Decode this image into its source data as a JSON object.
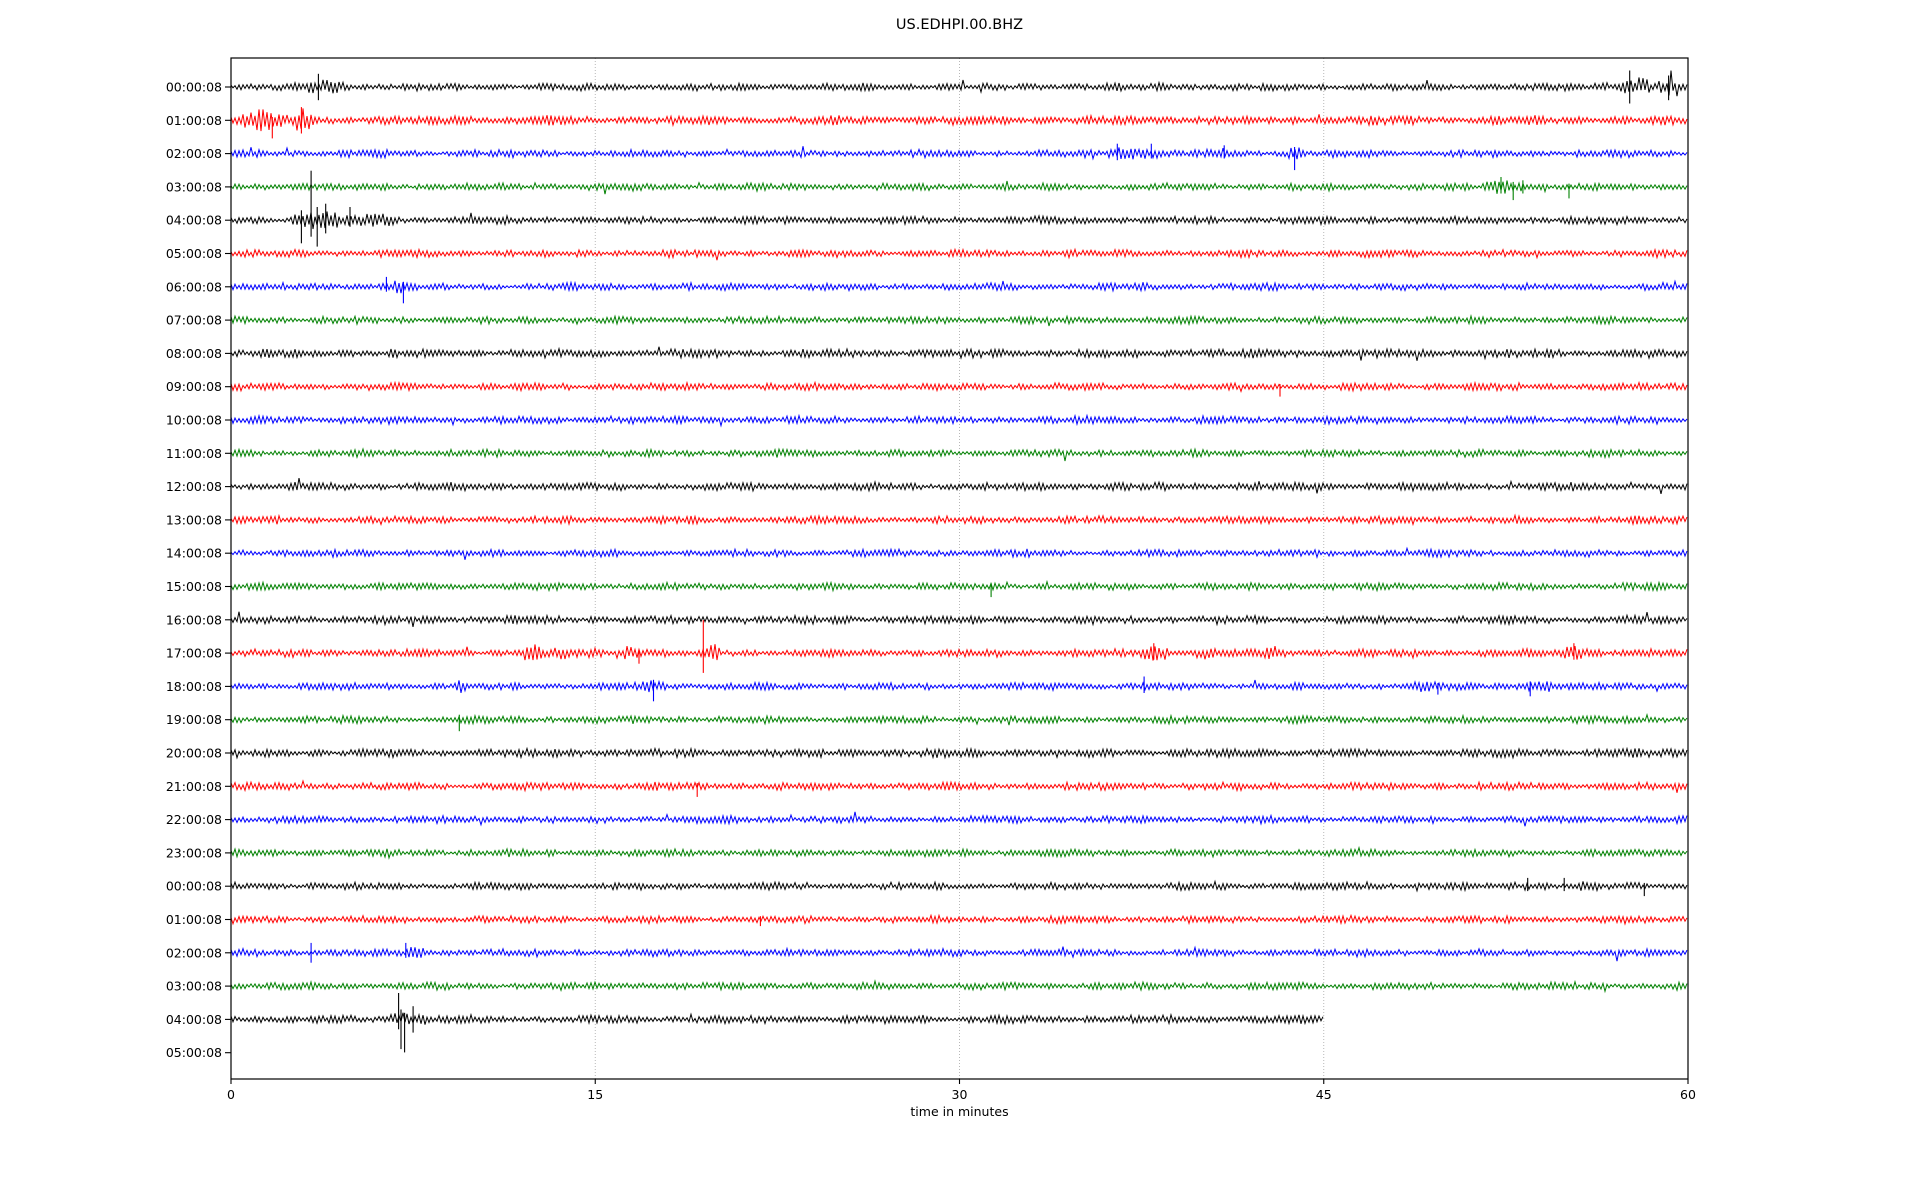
{
  "chart_data": {
    "type": "line",
    "subtype": "helicorder-dayplot",
    "title": "US.EDHPI.00.BHZ",
    "xlabel": "time in minutes",
    "ylabel": "",
    "xlim": [
      0,
      60
    ],
    "x_ticks": [
      0,
      15,
      30,
      45,
      60
    ],
    "grid_x": [
      15,
      30,
      45
    ],
    "grid_on": true,
    "grid_color": "#b0b0b0",
    "color_cycle": [
      "#000000",
      "#ff0000",
      "#0000ff",
      "#008000"
    ],
    "rows": [
      {
        "label": "00:00:08",
        "color": "#000000",
        "end_min": 60,
        "noise": 1.0,
        "bursts": [
          [
            2.6,
            2.4,
            2.0
          ],
          [
            38.0,
            0.5,
            2.2
          ],
          [
            56.1,
            0.6,
            2.2
          ],
          [
            57.1,
            1.4,
            3.4
          ],
          [
            58.7,
            1.3,
            2.6
          ]
        ],
        "spikes": [
          [
            3.6,
            4,
            4
          ],
          [
            57.6,
            5,
            5
          ],
          [
            59.2,
            3.5,
            4
          ]
        ]
      },
      {
        "label": "01:00:08",
        "color": "#ff0000",
        "end_min": 60,
        "noise": 1.2,
        "bursts": [
          [
            0.0,
            2.4,
            2.2
          ],
          [
            2.6,
            0.9,
            3.2
          ],
          [
            8.5,
            1.5,
            1.3
          ]
        ],
        "spikes": [
          [
            1.7,
            1,
            5.5
          ],
          [
            2.9,
            4,
            4
          ]
        ]
      },
      {
        "label": "02:00:08",
        "color": "#0000ff",
        "end_min": 60,
        "noise": 1.0,
        "bursts": [
          [
            36.0,
            2.4,
            2.3
          ],
          [
            40.5,
            0.7,
            1.9
          ],
          [
            43.5,
            0.8,
            2.1
          ]
        ],
        "spikes": [
          [
            36.5,
            3,
            2
          ],
          [
            37.9,
            3,
            1.5
          ],
          [
            40.9,
            2.5,
            1.5
          ],
          [
            43.8,
            2,
            5
          ]
        ]
      },
      {
        "label": "03:00:08",
        "color": "#008000",
        "end_min": 60,
        "noise": 1.0,
        "bursts": [
          [
            51.5,
            1.9,
            2.6
          ]
        ],
        "spikes": [
          [
            52.3,
            3,
            2
          ],
          [
            52.8,
            1.5,
            4
          ],
          [
            53.2,
            2,
            2
          ],
          [
            55.1,
            1,
            3.5
          ]
        ]
      },
      {
        "label": "04:00:08",
        "color": "#000000",
        "end_min": 60,
        "noise": 1.05,
        "bursts": [
          [
            2.5,
            2.0,
            3.0
          ],
          [
            4.5,
            2.8,
            1.7
          ]
        ],
        "spikes": [
          [
            2.9,
            3,
            7
          ],
          [
            3.3,
            15,
            5
          ],
          [
            3.55,
            4,
            8
          ],
          [
            3.9,
            5,
            4
          ],
          [
            4.9,
            4,
            2
          ]
        ]
      },
      {
        "label": "05:00:08",
        "color": "#ff0000",
        "end_min": 60,
        "noise": 1.0,
        "bursts": [],
        "spikes": []
      },
      {
        "label": "06:00:08",
        "color": "#0000ff",
        "end_min": 60,
        "noise": 1.0,
        "bursts": [
          [
            6.0,
            1.5,
            2.2
          ]
        ],
        "spikes": [
          [
            6.4,
            3,
            1.5
          ],
          [
            7.1,
            1.5,
            5
          ]
        ]
      },
      {
        "label": "07:00:08",
        "color": "#008000",
        "end_min": 60,
        "noise": 1.0,
        "bursts": [],
        "spikes": []
      },
      {
        "label": "08:00:08",
        "color": "#000000",
        "end_min": 60,
        "noise": 1.15,
        "bursts": [],
        "spikes": []
      },
      {
        "label": "09:00:08",
        "color": "#ff0000",
        "end_min": 60,
        "noise": 1.0,
        "bursts": [],
        "spikes": [
          [
            43.2,
            0.8,
            3
          ]
        ]
      },
      {
        "label": "10:00:08",
        "color": "#0000ff",
        "end_min": 60,
        "noise": 1.05,
        "bursts": [],
        "spikes": []
      },
      {
        "label": "11:00:08",
        "color": "#008000",
        "end_min": 60,
        "noise": 1.0,
        "bursts": [],
        "spikes": []
      },
      {
        "label": "12:00:08",
        "color": "#000000",
        "end_min": 60,
        "noise": 1.1,
        "bursts": [],
        "spikes": []
      },
      {
        "label": "13:00:08",
        "color": "#ff0000",
        "end_min": 60,
        "noise": 1.05,
        "bursts": [],
        "spikes": []
      },
      {
        "label": "14:00:08",
        "color": "#0000ff",
        "end_min": 60,
        "noise": 1.0,
        "bursts": [],
        "spikes": []
      },
      {
        "label": "15:00:08",
        "color": "#008000",
        "end_min": 60,
        "noise": 1.0,
        "bursts": [],
        "spikes": [
          [
            31.3,
            1,
            3.2
          ]
        ]
      },
      {
        "label": "16:00:08",
        "color": "#000000",
        "end_min": 60,
        "noise": 1.1,
        "bursts": [],
        "spikes": []
      },
      {
        "label": "17:00:08",
        "color": "#ff0000",
        "end_min": 60,
        "noise": 1.05,
        "bursts": [
          [
            11.7,
            1.1,
            2.4
          ],
          [
            13.2,
            0.9,
            2.2
          ],
          [
            14.7,
            0.7,
            2.0
          ],
          [
            15.7,
            1.5,
            2.3
          ],
          [
            19.6,
            0.6,
            2.3
          ],
          [
            37.3,
            1.7,
            2.2
          ],
          [
            39.7,
            0.9,
            2.0
          ],
          [
            42.5,
            1.0,
            2.0
          ],
          [
            54.7,
            1.8,
            2.3
          ]
        ],
        "spikes": [
          [
            16.8,
            1,
            3.2
          ],
          [
            19.45,
            10,
            6
          ],
          [
            38.0,
            3,
            2
          ],
          [
            55.3,
            3,
            2
          ]
        ]
      },
      {
        "label": "18:00:08",
        "color": "#0000ff",
        "end_min": 60,
        "noise": 1.0,
        "bursts": [
          [
            9.2,
            0.6,
            2.2
          ],
          [
            16.9,
            1.0,
            2.3
          ],
          [
            48.4,
            1.8,
            1.7
          ],
          [
            52.9,
            1.7,
            1.9
          ]
        ],
        "spikes": [
          [
            17.4,
            2,
            4.5
          ],
          [
            37.6,
            3,
            2
          ],
          [
            49.7,
            1,
            2.5
          ],
          [
            53.5,
            1.5,
            3
          ]
        ]
      },
      {
        "label": "19:00:08",
        "color": "#008000",
        "end_min": 60,
        "noise": 1.0,
        "bursts": [],
        "spikes": [
          [
            9.4,
            1.5,
            3.5
          ]
        ]
      },
      {
        "label": "20:00:08",
        "color": "#000000",
        "end_min": 60,
        "noise": 1.15,
        "bursts": [],
        "spikes": []
      },
      {
        "label": "21:00:08",
        "color": "#ff0000",
        "end_min": 60,
        "noise": 1.05,
        "bursts": [],
        "spikes": [
          [
            19.2,
            1,
            3.2
          ]
        ]
      },
      {
        "label": "22:00:08",
        "color": "#0000ff",
        "end_min": 60,
        "noise": 1.0,
        "bursts": [],
        "spikes": []
      },
      {
        "label": "23:00:08",
        "color": "#008000",
        "end_min": 60,
        "noise": 1.0,
        "bursts": [],
        "spikes": []
      },
      {
        "label": "00:00:08",
        "color": "#000000",
        "end_min": 60,
        "noise": 1.0,
        "bursts": [
          [
            52.8,
            1.4,
            1.7
          ],
          [
            55.3,
            1.0,
            1.6
          ]
        ],
        "spikes": [
          [
            53.4,
            2.5,
            1.5
          ],
          [
            54.9,
            2.5,
            1.5
          ],
          [
            58.2,
            1,
            3
          ]
        ]
      },
      {
        "label": "01:00:08",
        "color": "#ff0000",
        "end_min": 60,
        "noise": 1.0,
        "bursts": [],
        "spikes": [
          [
            21.8,
            1,
            2
          ]
        ]
      },
      {
        "label": "02:00:08",
        "color": "#0000ff",
        "end_min": 60,
        "noise": 1.0,
        "bursts": [
          [
            7.1,
            0.9,
            2.0
          ]
        ],
        "spikes": [
          [
            3.3,
            3,
            3
          ],
          [
            7.2,
            3,
            1.5
          ]
        ]
      },
      {
        "label": "03:00:08",
        "color": "#008000",
        "end_min": 60,
        "noise": 1.0,
        "bursts": [],
        "spikes": []
      },
      {
        "label": "04:00:08",
        "color": "#000000",
        "end_min": 45,
        "noise": 1.1,
        "bursts": [
          [
            6.5,
            1.1,
            2.6
          ],
          [
            7.4,
            0.9,
            1.8
          ]
        ],
        "spikes": [
          [
            6.9,
            8,
            3
          ],
          [
            7.0,
            3,
            9
          ],
          [
            7.15,
            2,
            10
          ],
          [
            7.5,
            4,
            4
          ]
        ]
      },
      {
        "label": "05:00:08",
        "color": "#000000",
        "end_min": 0,
        "noise": 1.0,
        "bursts": [],
        "spikes": []
      }
    ]
  }
}
